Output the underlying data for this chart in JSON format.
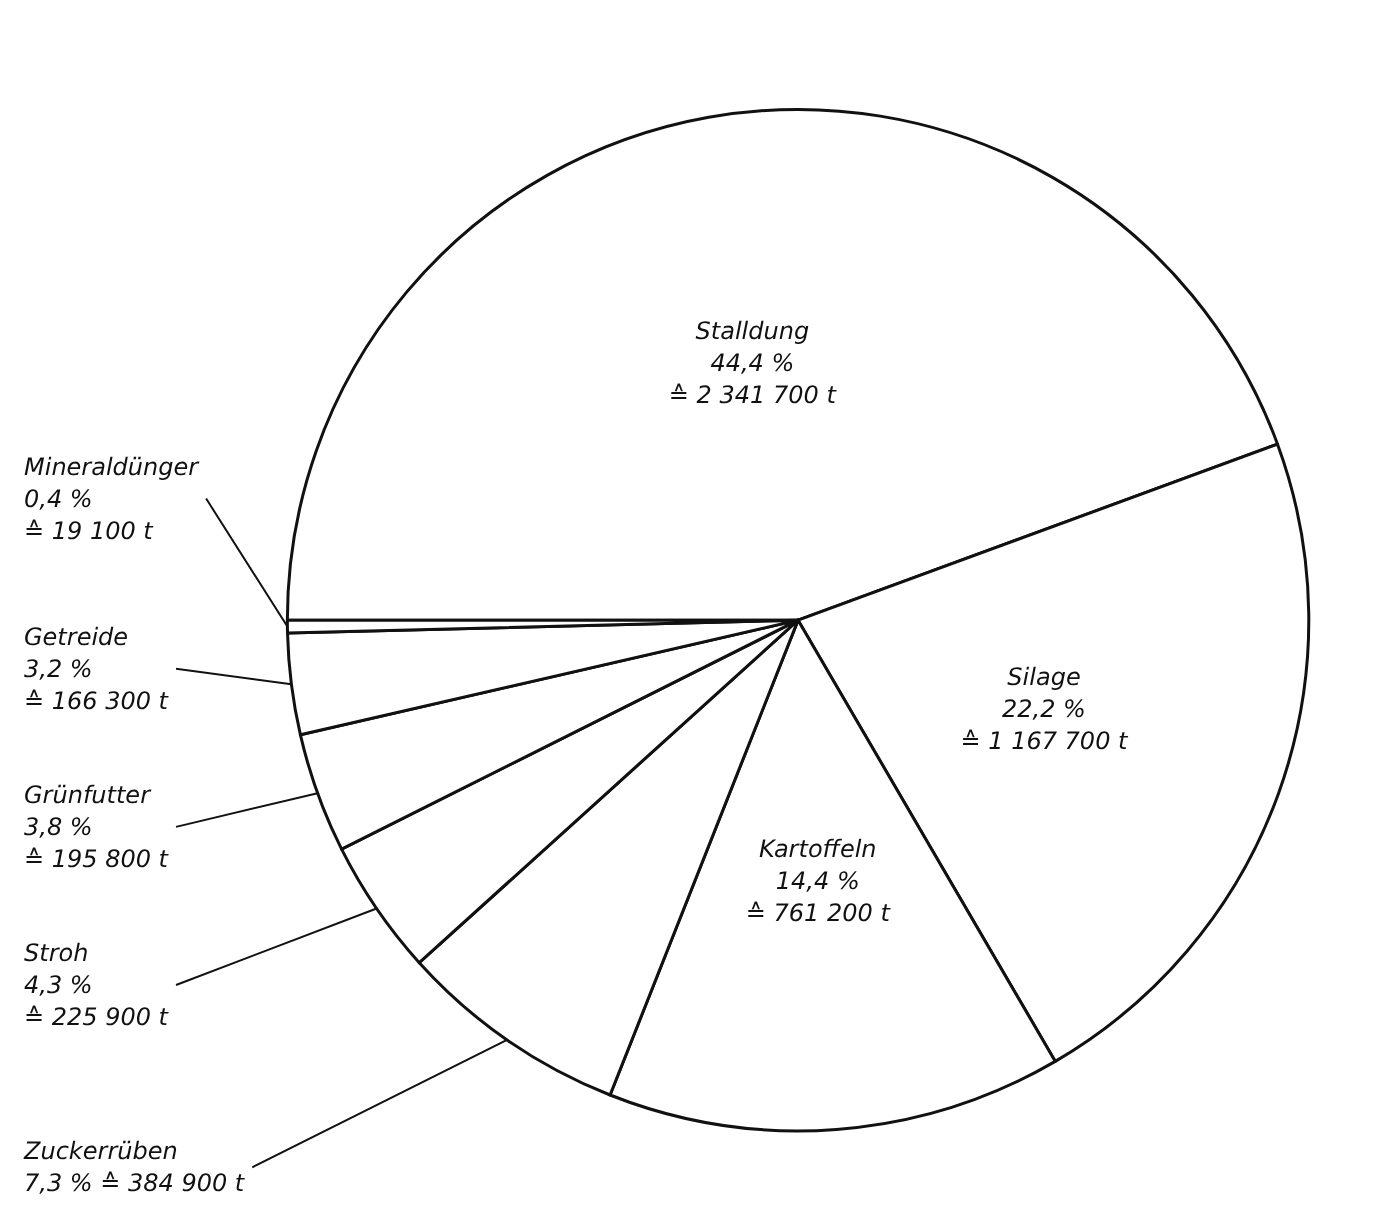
{
  "chart_data": {
    "type": "pie",
    "categories": [
      "Stalldung",
      "Silage",
      "Kartoffeln",
      "Zuckerrüben",
      "Stroh",
      "Grünfutter",
      "Getreide",
      "Mineraldünger"
    ],
    "values": [
      44.4,
      22.2,
      14.4,
      7.3,
      4.3,
      3.8,
      3.2,
      0.4
    ],
    "value_labels": [
      "44,4 %\n≙ 2 341 700 t",
      "22,2 %\n≙ 1 167 700 t",
      "14,4 %\n≙ 761 200 t",
      "7,3 % ≙ 384 900 t",
      "4,3 %\n≙ 225 900 t",
      "3,8 %\n≙ 195 800 t",
      "3,2 %\n≙ 166 300 t",
      "0,4 %\n≙ 19 100 t"
    ],
    "colors": [
      "#ffffff",
      "#ffffff",
      "#ffffff",
      "#ffffff",
      "#ffffff",
      "#ffffff",
      "#ffffff",
      "#ffffff"
    ],
    "legend": false
  }
}
